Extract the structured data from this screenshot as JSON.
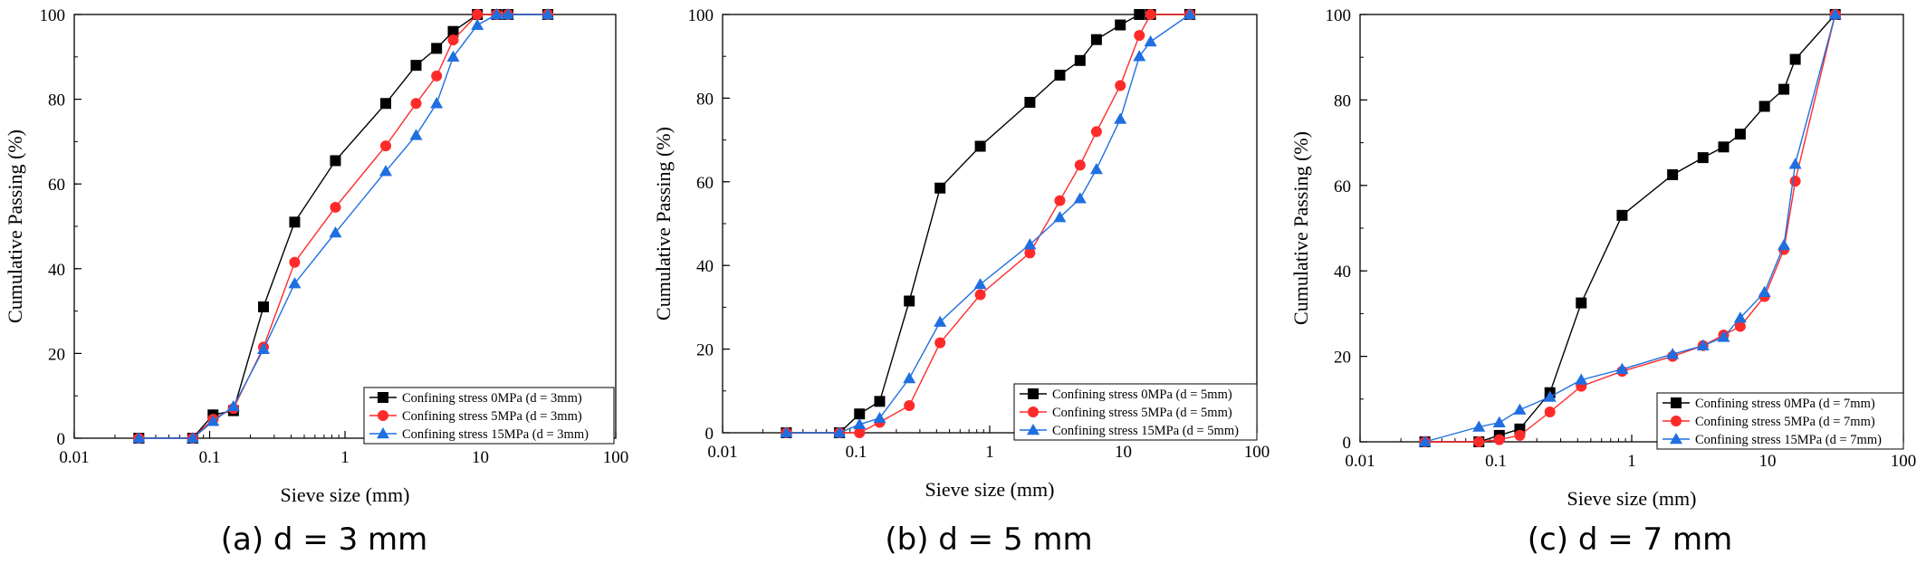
{
  "chart_data": [
    {
      "type": "line",
      "caption": "(a) d = 3 mm",
      "xlabel": "Sieve size (mm)",
      "ylabel": "Cumulative Passing (%)",
      "xscale": "log",
      "xlim": [
        0.01,
        100
      ],
      "ylim": [
        0,
        100
      ],
      "xticks": [
        "0.01",
        "0.1",
        "1",
        "10",
        "100"
      ],
      "yticks": [
        "0",
        "20",
        "40",
        "60",
        "80",
        "100"
      ],
      "legend_position": "bottom-right",
      "grid": false,
      "series": [
        {
          "name": "Confining stress 0MPa (d = 3mm)",
          "color": "#000000",
          "marker": "square",
          "points": [
            [
              0.03,
              0
            ],
            [
              0.075,
              0
            ],
            [
              0.106,
              5.5
            ],
            [
              0.15,
              6.5
            ],
            [
              0.25,
              31
            ],
            [
              0.425,
              51
            ],
            [
              0.85,
              65.5
            ],
            [
              2,
              79
            ],
            [
              3.35,
              88
            ],
            [
              4.75,
              92
            ],
            [
              6.3,
              96
            ],
            [
              9.5,
              100
            ],
            [
              13.2,
              100
            ],
            [
              16,
              100
            ],
            [
              31.5,
              100
            ]
          ]
        },
        {
          "name": "Confining stress 5MPa (d = 3mm)",
          "color": "#ff2a2a",
          "marker": "circle",
          "points": [
            [
              0.03,
              0
            ],
            [
              0.075,
              0
            ],
            [
              0.106,
              4.5
            ],
            [
              0.15,
              7
            ],
            [
              0.25,
              21.5
            ],
            [
              0.425,
              41.5
            ],
            [
              0.85,
              54.5
            ],
            [
              2,
              69
            ],
            [
              3.35,
              79
            ],
            [
              4.75,
              85.5
            ],
            [
              6.3,
              94
            ],
            [
              9.5,
              100
            ],
            [
              13.2,
              100
            ],
            [
              16,
              100
            ],
            [
              31.5,
              100
            ]
          ]
        },
        {
          "name": "Confining stress 15MPa (d = 3mm)",
          "color": "#1f6fe0",
          "marker": "triangle",
          "points": [
            [
              0.03,
              0
            ],
            [
              0.075,
              0
            ],
            [
              0.106,
              4
            ],
            [
              0.15,
              7.5
            ],
            [
              0.25,
              21
            ],
            [
              0.425,
              36.5
            ],
            [
              0.85,
              48.5
            ],
            [
              2,
              63
            ],
            [
              3.35,
              71.5
            ],
            [
              4.75,
              79
            ],
            [
              6.3,
              90
            ],
            [
              9.5,
              97.5
            ],
            [
              13.2,
              100
            ],
            [
              16,
              100
            ],
            [
              31.5,
              100
            ]
          ]
        }
      ]
    },
    {
      "type": "line",
      "caption": "(b) d = 5 mm",
      "xlabel": "Sieve size (mm)",
      "ylabel": "Cumulative Passing (%)",
      "xscale": "log",
      "xlim": [
        0.01,
        100
      ],
      "ylim": [
        0,
        100
      ],
      "xticks": [
        "0.01",
        "0.1",
        "1",
        "10",
        "100"
      ],
      "yticks": [
        "0",
        "20",
        "40",
        "60",
        "80",
        "100"
      ],
      "legend_position": "bottom-right",
      "grid": false,
      "series": [
        {
          "name": "Confining stress 0MPa (d = 5mm)",
          "color": "#000000",
          "marker": "square",
          "points": [
            [
              0.03,
              0
            ],
            [
              0.075,
              0
            ],
            [
              0.106,
              4.5
            ],
            [
              0.15,
              7.5
            ],
            [
              0.25,
              31.5
            ],
            [
              0.425,
              58.5
            ],
            [
              0.85,
              68.5
            ],
            [
              2,
              79
            ],
            [
              3.35,
              85.5
            ],
            [
              4.75,
              89
            ],
            [
              6.3,
              94
            ],
            [
              9.5,
              97.5
            ],
            [
              13.2,
              100
            ],
            [
              16,
              100
            ],
            [
              31.5,
              100
            ]
          ]
        },
        {
          "name": "Confining stress 5MPa (d = 5mm)",
          "color": "#ff2a2a",
          "marker": "circle",
          "points": [
            [
              0.03,
              0
            ],
            [
              0.075,
              0
            ],
            [
              0.106,
              0
            ],
            [
              0.15,
              2.5
            ],
            [
              0.25,
              6.5
            ],
            [
              0.425,
              21.5
            ],
            [
              0.85,
              33
            ],
            [
              2,
              43
            ],
            [
              3.35,
              55.5
            ],
            [
              4.75,
              64
            ],
            [
              6.3,
              72
            ],
            [
              9.5,
              83
            ],
            [
              13.2,
              95
            ],
            [
              16,
              100
            ],
            [
              31.5,
              100
            ]
          ]
        },
        {
          "name": "Confining stress 15MPa (d = 5mm)",
          "color": "#1f6fe0",
          "marker": "triangle",
          "points": [
            [
              0.03,
              0
            ],
            [
              0.075,
              0
            ],
            [
              0.106,
              2
            ],
            [
              0.15,
              3.5
            ],
            [
              0.25,
              13
            ],
            [
              0.425,
              26.5
            ],
            [
              0.85,
              35.5
            ],
            [
              2,
              45
            ],
            [
              3.35,
              51.5
            ],
            [
              4.75,
              56
            ],
            [
              6.3,
              63
            ],
            [
              9.5,
              75
            ],
            [
              13.2,
              90
            ],
            [
              16,
              93.5
            ],
            [
              31.5,
              100
            ]
          ]
        }
      ]
    },
    {
      "type": "line",
      "caption": "(c) d = 7 mm",
      "xlabel": "Sieve size (mm)",
      "ylabel": "Cumulative Passing (%)",
      "xscale": "log",
      "xlim": [
        0.01,
        100
      ],
      "ylim": [
        0,
        100
      ],
      "xticks": [
        "0.01",
        "0.1",
        "1",
        "10",
        "100"
      ],
      "yticks": [
        "0",
        "20",
        "40",
        "60",
        "80",
        "100"
      ],
      "legend_position": "bottom-right",
      "grid": false,
      "series": [
        {
          "name": "Confining stress 0MPa (d = 7mm)",
          "color": "#000000",
          "marker": "square",
          "points": [
            [
              0.03,
              0
            ],
            [
              0.075,
              0
            ],
            [
              0.106,
              1.5
            ],
            [
              0.15,
              3
            ],
            [
              0.25,
              11.5
            ],
            [
              0.425,
              32.5
            ],
            [
              0.85,
              53
            ],
            [
              2,
              62.5
            ],
            [
              3.35,
              66.5
            ],
            [
              4.75,
              69
            ],
            [
              6.3,
              72
            ],
            [
              9.5,
              78.5
            ],
            [
              13.2,
              82.5
            ],
            [
              16,
              89.5
            ],
            [
              31.5,
              100
            ]
          ]
        },
        {
          "name": "Confining stress 5MPa (d = 7mm)",
          "color": "#ff2a2a",
          "marker": "circle",
          "points": [
            [
              0.03,
              0
            ],
            [
              0.075,
              0
            ],
            [
              0.106,
              0.5
            ],
            [
              0.15,
              1.5
            ],
            [
              0.25,
              7
            ],
            [
              0.425,
              13
            ],
            [
              0.85,
              16.5
            ],
            [
              2,
              20
            ],
            [
              3.35,
              22.5
            ],
            [
              4.75,
              25
            ],
            [
              6.3,
              27
            ],
            [
              9.5,
              34
            ],
            [
              13.2,
              45
            ],
            [
              16,
              61
            ],
            [
              31.5,
              100
            ]
          ]
        },
        {
          "name": "Confining stress 15MPa (d = 7mm)",
          "color": "#1f6fe0",
          "marker": "triangle",
          "points": [
            [
              0.03,
              0
            ],
            [
              0.075,
              3.5
            ],
            [
              0.106,
              4.5
            ],
            [
              0.15,
              7.5
            ],
            [
              0.25,
              10.5
            ],
            [
              0.425,
              14.5
            ],
            [
              0.85,
              17
            ],
            [
              2,
              20.5
            ],
            [
              3.35,
              22.5
            ],
            [
              4.75,
              24.5
            ],
            [
              6.3,
              29
            ],
            [
              9.5,
              35
            ],
            [
              13.2,
              46
            ],
            [
              16,
              65
            ],
            [
              31.5,
              100
            ]
          ]
        }
      ]
    }
  ]
}
